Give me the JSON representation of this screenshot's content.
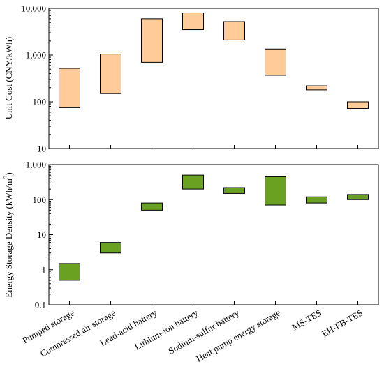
{
  "chart_data": [
    {
      "type": "bar",
      "subtype": "floating-range",
      "yscale": "log",
      "ylim": [
        10,
        10000
      ],
      "ylabel": "Unit Cost (CNY/kWh)",
      "yticks": [
        10,
        100,
        1000,
        10000
      ],
      "ytick_labels": [
        "10",
        "100",
        "1,000",
        "10,000"
      ],
      "color": "#FFCC99",
      "categories": [
        "Pumped storage",
        "Compressed air storage",
        "Lead-acid battery",
        "Lithium-ion battery",
        "Sodium-sulfur battery",
        "Heat pump energy storage",
        "MS-TES",
        "EH-FB-TES"
      ],
      "ranges": [
        [
          75,
          520
        ],
        [
          150,
          1050
        ],
        [
          700,
          6000
        ],
        [
          3500,
          8000
        ],
        [
          2100,
          5200
        ],
        [
          370,
          1350
        ],
        [
          180,
          220
        ],
        [
          72,
          100
        ]
      ]
    },
    {
      "type": "bar",
      "subtype": "floating-range",
      "yscale": "log",
      "ylim": [
        0.1,
        1000
      ],
      "ylabel": "Energy Storage Density (kWh/m",
      "ylabel_sup": "3",
      "ylabel_end": ")",
      "yticks": [
        0.1,
        1,
        10,
        100,
        1000
      ],
      "ytick_labels": [
        "0.1",
        "1",
        "10",
        "100",
        "1,000"
      ],
      "color": "#6AA121",
      "categories": [
        "Pumped storage",
        "Compressed air storage",
        "Lead-acid battery",
        "Lithium-ion battery",
        "Sodium-sulfur battery",
        "Heat pump energy storage",
        "MS-TES",
        "EH-FB-TES"
      ],
      "ranges": [
        [
          0.5,
          1.5
        ],
        [
          3,
          6
        ],
        [
          50,
          80
        ],
        [
          200,
          500
        ],
        [
          150,
          220
        ],
        [
          70,
          450
        ],
        [
          80,
          120
        ],
        [
          100,
          140
        ]
      ]
    }
  ]
}
